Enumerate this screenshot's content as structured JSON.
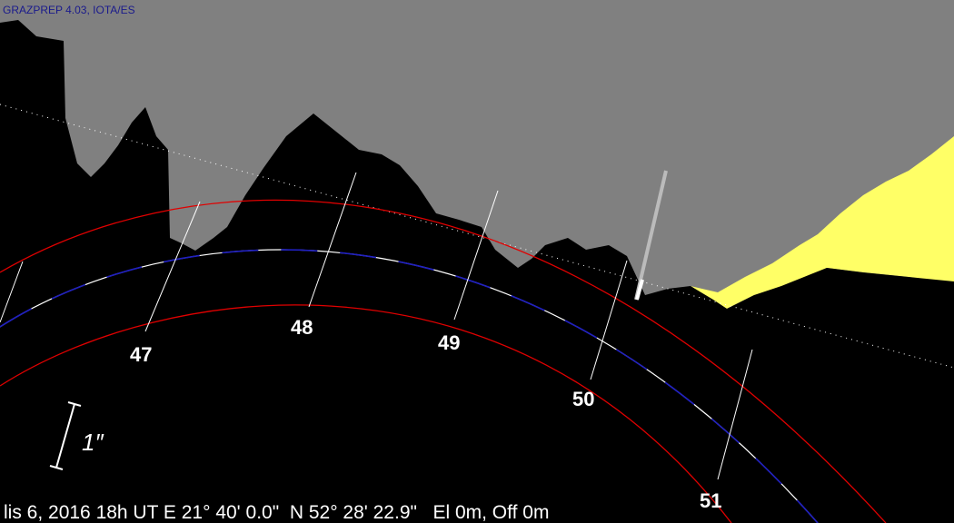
{
  "header": {
    "title": "GRAZPREP 4.03, IOTA/ES"
  },
  "tick_labels": [
    "47",
    "48",
    "49",
    "50",
    "51"
  ],
  "scale_label": "1″",
  "footer": {
    "text": "lis 6, 2016 18h UT E 21° 40' 0.0\"  N 52° 28' 22.9\"   El 0m, Off 0m"
  }
}
